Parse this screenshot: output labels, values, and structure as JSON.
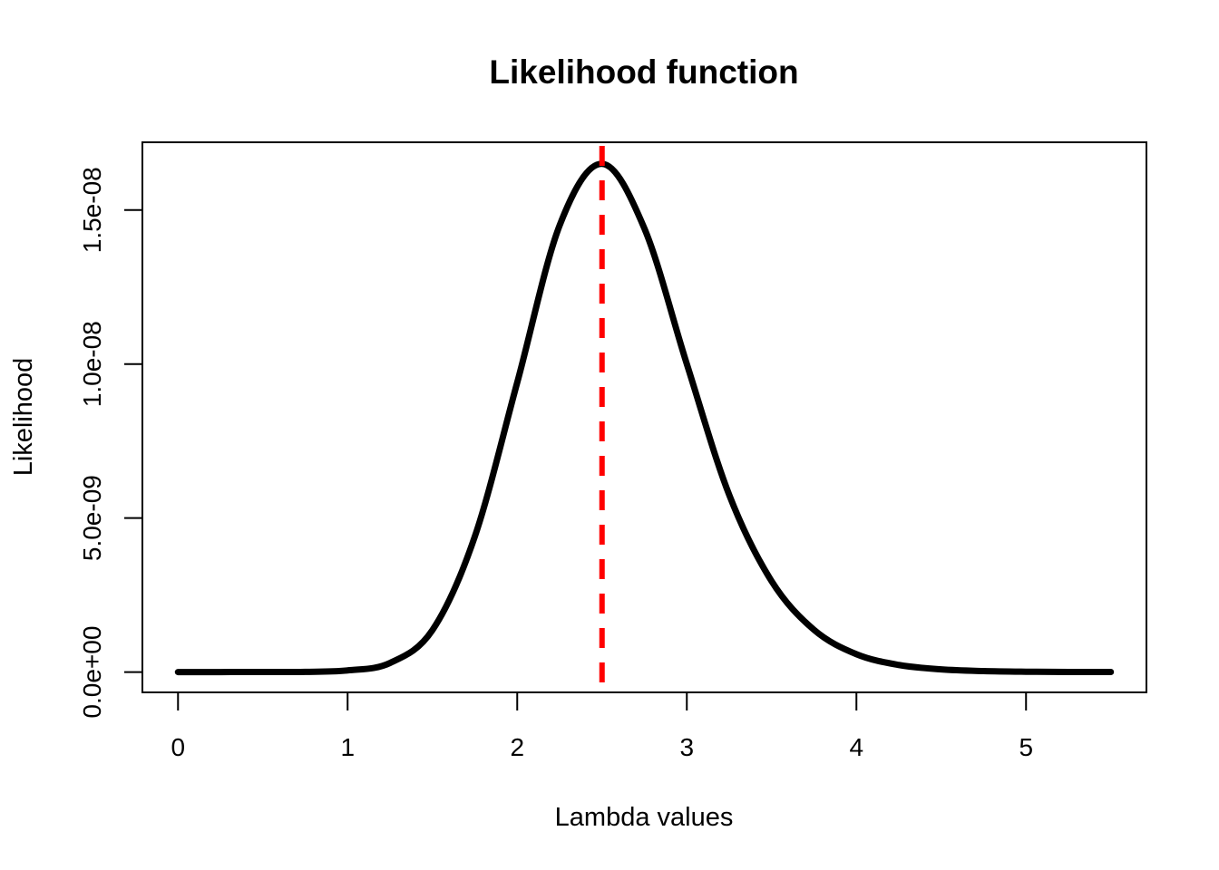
{
  "chart_data": {
    "type": "line",
    "title": "Likelihood function",
    "xlabel": "Lambda values",
    "ylabel": "Likelihood",
    "xlim": [
      -0.21,
      5.71
    ],
    "ylim": [
      -6.6e-10,
      1.72e-08
    ],
    "x_ticks": [
      0,
      1,
      2,
      3,
      4,
      5
    ],
    "x_tick_labels": [
      "0",
      "1",
      "2",
      "3",
      "4",
      "5"
    ],
    "y_ticks": [
      0,
      5e-09,
      1e-08,
      1.5e-08
    ],
    "y_tick_labels": [
      "0.0e+00",
      "5.0e-09",
      "1.0e-08",
      "1.5e-08"
    ],
    "grid": false,
    "legend": "none",
    "series": [
      {
        "color": "#000000",
        "line_style": "solid",
        "x": [
          0.0,
          0.25,
          0.5,
          0.75,
          1.0,
          1.25,
          1.5,
          1.75,
          2.0,
          2.25,
          2.5,
          2.75,
          3.0,
          3.25,
          3.5,
          3.75,
          4.0,
          4.25,
          4.5,
          4.75,
          5.0,
          5.25,
          5.5
        ],
        "y": [
          0,
          0,
          1e-12,
          6e-12,
          5.3e-11,
          2.95e-10,
          1.36e-09,
          4.4e-09,
          9.4e-09,
          1.45e-08,
          1.65e-08,
          1.44e-08,
          1e-08,
          5.75e-09,
          2.95e-09,
          1.37e-09,
          5.8e-10,
          2.3e-10,
          8.6e-11,
          3.1e-11,
          1e-11,
          3e-12,
          1e-12
        ]
      }
    ],
    "reference_lines": [
      {
        "orientation": "vertical",
        "x": 2.5,
        "color": "#ff0000",
        "line_style": "dashed"
      }
    ]
  }
}
